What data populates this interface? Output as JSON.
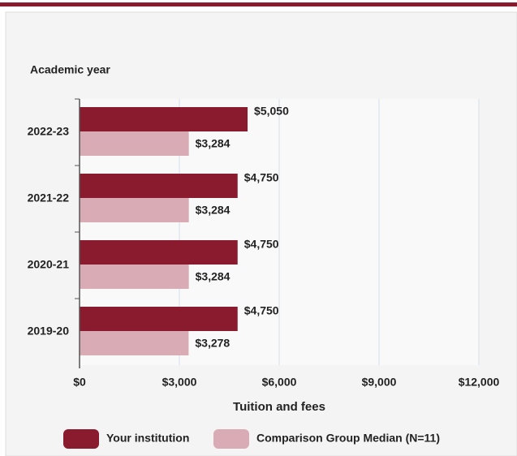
{
  "chart_data": {
    "type": "hbar",
    "y_axis_title": "Academic year",
    "x_axis_title": "Tuition and fees",
    "categories": [
      "2022-23",
      "2021-22",
      "2020-21",
      "2019-20"
    ],
    "series": [
      {
        "name": "Your institution",
        "color": "#8a1b2e",
        "values": [
          5050,
          4750,
          4750,
          4750
        ],
        "value_labels": [
          "$5,050",
          "$4,750",
          "$4,750",
          "$4,750"
        ]
      },
      {
        "name": "Comparison Group Median (N=11)",
        "color": "#d8abb5",
        "values": [
          3284,
          3284,
          3284,
          3278
        ],
        "value_labels": [
          "$3,284",
          "$3,284",
          "$3,284",
          "$3,278"
        ]
      }
    ],
    "xlim": [
      0,
      12000
    ],
    "xticks": [
      {
        "value": 0,
        "label": "$0"
      },
      {
        "value": 3000,
        "label": "$3,000"
      },
      {
        "value": 6000,
        "label": "$6,000"
      },
      {
        "value": 9000,
        "label": "$9,000"
      },
      {
        "value": 12000,
        "label": "$12,000"
      }
    ],
    "grid": true
  }
}
